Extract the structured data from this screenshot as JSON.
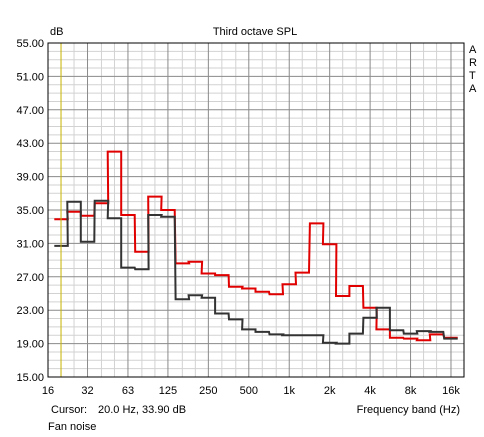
{
  "chart_data": {
    "type": "line",
    "title": "Third octave SPL",
    "ylabel": "dB",
    "xlabel": "Frequency band (Hz)",
    "brand": "ARTA",
    "ylim": [
      15,
      55
    ],
    "yticks": [
      "55.00",
      "51.00",
      "47.00",
      "43.00",
      "39.00",
      "35.00",
      "31.00",
      "27.00",
      "23.00",
      "19.00",
      "15.00"
    ],
    "xticks": [
      "16",
      "32",
      "63",
      "125",
      "250",
      "500",
      "1k",
      "2k",
      "4k",
      "8k",
      "16k"
    ],
    "bands": [
      "20",
      "25",
      "31.5",
      "40",
      "50",
      "63",
      "80",
      "100",
      "125",
      "160",
      "200",
      "250",
      "315",
      "400",
      "500",
      "630",
      "800",
      "1k",
      "1.25k",
      "1.6k",
      "2k",
      "2.5k",
      "3.15k",
      "4k",
      "5k",
      "6.3k",
      "8k",
      "10k",
      "12.5k",
      "16k"
    ],
    "grid": true,
    "cursor_hz": 20,
    "series": [
      {
        "color": "#e00000",
        "values": [
          33.9,
          34.8,
          34.3,
          35.8,
          42.0,
          34.4,
          30.0,
          36.6,
          35.0,
          28.6,
          28.8,
          27.4,
          27.2,
          25.8,
          25.6,
          25.2,
          24.9,
          26.1,
          27.5,
          33.4,
          30.9,
          24.7,
          25.9,
          23.3,
          20.7,
          19.7,
          19.6,
          19.4,
          20.1,
          19.7
        ]
      },
      {
        "color": "#333333",
        "values": [
          30.7,
          36.0,
          31.2,
          36.1,
          34.0,
          28.1,
          27.9,
          34.4,
          34.2,
          24.3,
          24.8,
          24.5,
          22.6,
          21.9,
          20.7,
          20.4,
          20.1,
          20.0,
          20.0,
          20.0,
          19.1,
          19.0,
          20.2,
          22.1,
          23.3,
          20.6,
          20.2,
          20.5,
          20.4,
          19.6
        ]
      }
    ]
  },
  "status": {
    "cursor_label": "Cursor:",
    "cursor_value": "20.0 Hz, 33.90 dB",
    "xlabel": "Frequency band (Hz)",
    "caption": "Fan noise"
  }
}
